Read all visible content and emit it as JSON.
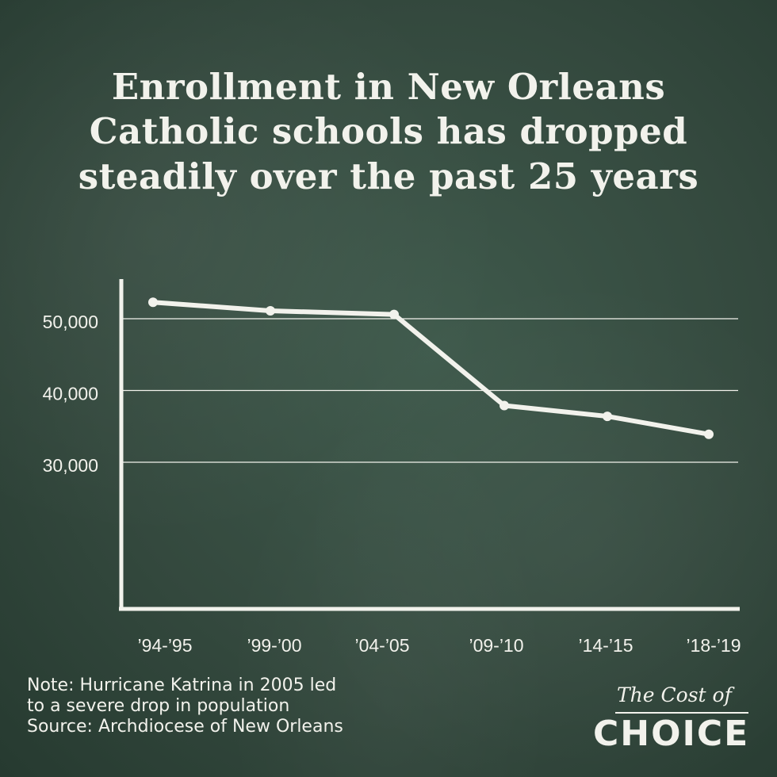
{
  "title": {
    "line1": "Enrollment in New Orleans",
    "line2": "Catholic schools has dropped",
    "line3": "steadily over the past 25 years"
  },
  "note": {
    "line1": "Note: Hurricane Katrina in 2005 led",
    "line2": "to a severe drop in population",
    "line3": "Source: Archdiocese of New Orleans"
  },
  "logo": {
    "top": "The Cost of",
    "main": "CHOICE"
  },
  "colors": {
    "chalk": "#f2f2ec",
    "board": "#34493e"
  },
  "chart_data": {
    "type": "line",
    "title": "Enrollment in New Orleans Catholic schools has dropped steadily over the past 25 years",
    "xlabel": "",
    "ylabel": "",
    "categories": [
      "’94-’95",
      "’99-’00",
      "’04-’05",
      "’09-’10",
      "’14-’15",
      "’18-’19"
    ],
    "series": [
      {
        "name": "Enrollment",
        "values": [
          52300,
          51100,
          50600,
          37900,
          36400,
          33900
        ]
      }
    ],
    "yticks": [
      30000,
      40000,
      50000
    ],
    "ytick_labels": [
      "30,000",
      "40,000",
      "50,000"
    ],
    "grid": true,
    "legend": "none"
  }
}
